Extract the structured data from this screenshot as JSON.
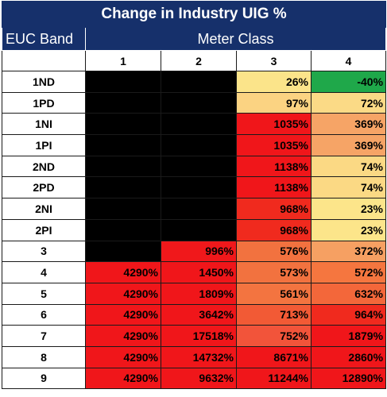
{
  "chart_data": {
    "type": "table",
    "title": "Change in Industry UIG %",
    "row_header_label": "EUC Band",
    "column_group_label": "Meter Class",
    "columns": [
      "1",
      "2",
      "3",
      "4"
    ],
    "rows": [
      {
        "label": "1ND",
        "cells": [
          null,
          null,
          "26%",
          "-40%"
        ]
      },
      {
        "label": "1PD",
        "cells": [
          null,
          null,
          "97%",
          "72%"
        ]
      },
      {
        "label": "1NI",
        "cells": [
          null,
          null,
          "1035%",
          "369%"
        ]
      },
      {
        "label": "1PI",
        "cells": [
          null,
          null,
          "1035%",
          "369%"
        ]
      },
      {
        "label": "2ND",
        "cells": [
          null,
          null,
          "1138%",
          "74%"
        ]
      },
      {
        "label": "2PD",
        "cells": [
          null,
          null,
          "1138%",
          "74%"
        ]
      },
      {
        "label": "2NI",
        "cells": [
          null,
          null,
          "968%",
          "23%"
        ]
      },
      {
        "label": "2PI",
        "cells": [
          null,
          null,
          "968%",
          "23%"
        ]
      },
      {
        "label": "3",
        "cells": [
          null,
          "996%",
          "576%",
          "372%"
        ]
      },
      {
        "label": "4",
        "cells": [
          "4290%",
          "1450%",
          "573%",
          "572%"
        ]
      },
      {
        "label": "5",
        "cells": [
          "4290%",
          "1809%",
          "561%",
          "632%"
        ]
      },
      {
        "label": "6",
        "cells": [
          "4290%",
          "3642%",
          "713%",
          "964%"
        ]
      },
      {
        "label": "7",
        "cells": [
          "4290%",
          "17518%",
          "752%",
          "1879%"
        ]
      },
      {
        "label": "8",
        "cells": [
          "4290%",
          "14732%",
          "8671%",
          "2860%"
        ]
      },
      {
        "label": "9",
        "cells": [
          "4290%",
          "9632%",
          "11244%",
          "12890%"
        ]
      }
    ],
    "colors": {
      "header_bg": "#16306b",
      "header_text": "#ffffff",
      "blank_cell": "#000000",
      "scale_green": "#1fa84a",
      "scale_yellow": "#fde68a",
      "scale_orange": "#f6a466",
      "scale_red": "#f0161a"
    },
    "cell_colors": [
      [
        null,
        null,
        "#fbe48a",
        "#1fa84a"
      ],
      [
        null,
        null,
        "#fbd382",
        "#fbda86"
      ],
      [
        null,
        null,
        "#f0161a",
        "#f6a466"
      ],
      [
        null,
        null,
        "#f0161a",
        "#f6a466"
      ],
      [
        null,
        null,
        "#f0161a",
        "#fbd984"
      ],
      [
        null,
        null,
        "#f0161a",
        "#fbd984"
      ],
      [
        null,
        null,
        "#f02a1e",
        "#fce58a"
      ],
      [
        null,
        null,
        "#f02a1e",
        "#fce58a"
      ],
      [
        null,
        "#f0181b",
        "#f2723f",
        "#f6a062"
      ],
      [
        "#f0161a",
        "#f0161a",
        "#f2723f",
        "#f5763f"
      ],
      [
        "#f0161a",
        "#f0161a",
        "#f37440",
        "#f3673a"
      ],
      [
        "#f0161a",
        "#f0161a",
        "#f25a35",
        "#f02a1e"
      ],
      [
        "#f0161a",
        "#f0161a",
        "#f2543a",
        "#f0161a"
      ],
      [
        "#f0161a",
        "#f0161a",
        "#f0161a",
        "#f0161a"
      ],
      [
        "#f0161a",
        "#f0161a",
        "#f0161a",
        "#f0161a"
      ]
    ]
  }
}
